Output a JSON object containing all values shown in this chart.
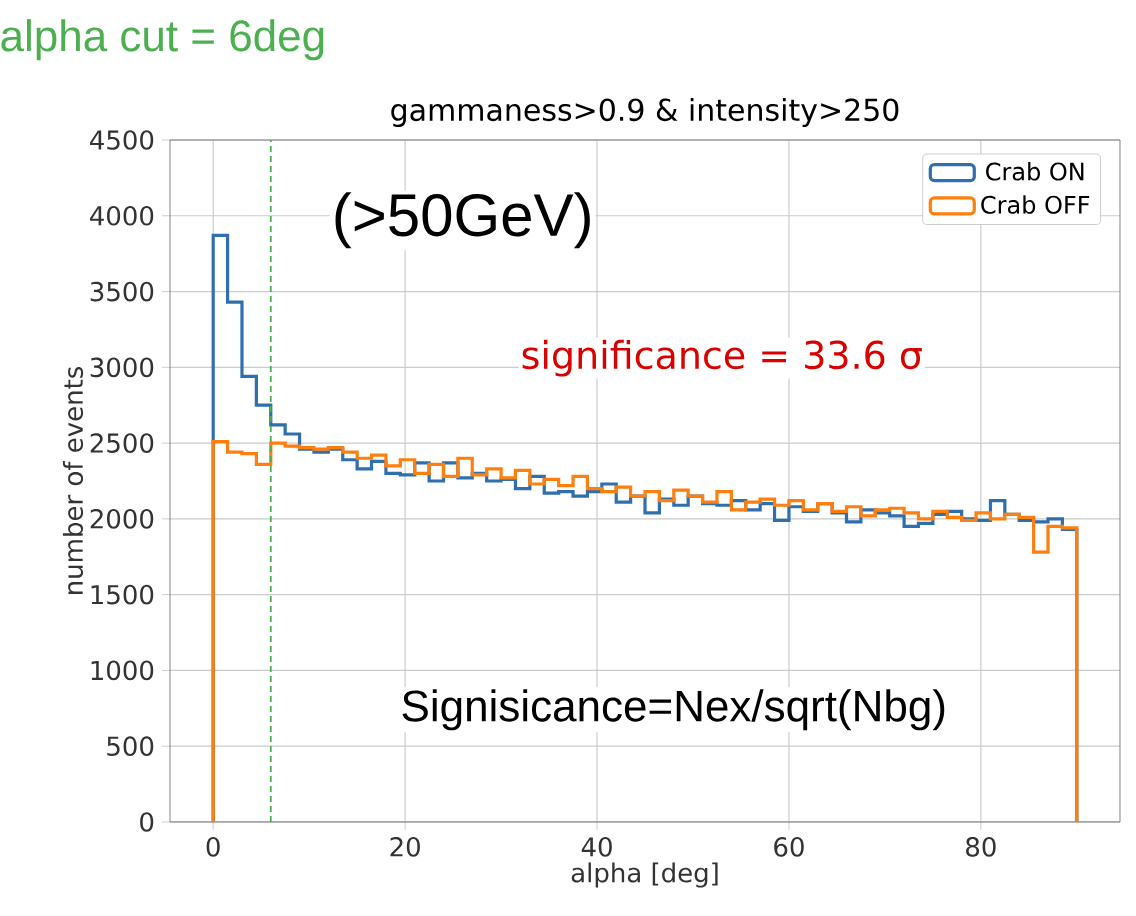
{
  "chart_data": {
    "type": "histogram",
    "title": "gammaness>0.9 & intensity>250",
    "xlabel": "alpha [deg]",
    "ylabel": "number of events",
    "bins": [
      0,
      1.5,
      3,
      4.5,
      6,
      7.5,
      9,
      10.5,
      12,
      13.5,
      15,
      16.5,
      18,
      19.5,
      21,
      22.5,
      24,
      25.5,
      27,
      28.5,
      30,
      31.5,
      33,
      34.5,
      36,
      37.5,
      39,
      40.5,
      42,
      43.5,
      45,
      46.5,
      48,
      49.5,
      51,
      52.5,
      54,
      55.5,
      57,
      58.5,
      60,
      61.5,
      63,
      64.5,
      66,
      67.5,
      69,
      70.5,
      72,
      73.5,
      75,
      76.5,
      78,
      79.5,
      81,
      82.5,
      84,
      85.5,
      87,
      88.5,
      90
    ],
    "series": [
      {
        "name": "Crab ON",
        "color": "#2f6fae",
        "values": [
          3870,
          3430,
          2940,
          2750,
          2620,
          2560,
          2460,
          2440,
          2460,
          2390,
          2330,
          2380,
          2300,
          2290,
          2370,
          2250,
          2370,
          2270,
          2300,
          2250,
          2260,
          2200,
          2280,
          2170,
          2180,
          2150,
          2180,
          2230,
          2110,
          2150,
          2040,
          2130,
          2090,
          2150,
          2100,
          2090,
          2120,
          2060,
          2100,
          1990,
          2080,
          2050,
          2100,
          2040,
          1980,
          2060,
          2040,
          2020,
          1950,
          1970,
          2030,
          2050,
          2000,
          1990,
          2120,
          2030,
          1990,
          1980,
          2000,
          1930
        ]
      },
      {
        "name": "Crab OFF",
        "color": "#ff7f0e",
        "values": [
          2510,
          2440,
          2430,
          2360,
          2500,
          2480,
          2470,
          2460,
          2470,
          2440,
          2400,
          2420,
          2350,
          2390,
          2300,
          2360,
          2280,
          2400,
          2290,
          2330,
          2270,
          2320,
          2230,
          2260,
          2220,
          2280,
          2200,
          2180,
          2210,
          2150,
          2180,
          2120,
          2190,
          2150,
          2110,
          2180,
          2060,
          2110,
          2130,
          2090,
          2120,
          2060,
          2100,
          2050,
          2080,
          2020,
          2060,
          2070,
          2040,
          2000,
          2050,
          2010,
          1990,
          2040,
          2000,
          2030,
          2010,
          1780,
          1950,
          1940
        ]
      }
    ],
    "xlim": [
      -4.5,
      94.5
    ],
    "xticks": [
      0,
      20,
      40,
      60,
      80
    ],
    "ylim": [
      0,
      4500
    ],
    "yticks": [
      0,
      500,
      1000,
      1500,
      2000,
      2500,
      3000,
      3500,
      4000,
      4500
    ],
    "grid": true,
    "legend": "top right",
    "ref_lines": [
      {
        "axis": "x",
        "value": 6,
        "label": "alpha cut = 6deg",
        "color": "#4caf50",
        "line_style": "dashed"
      }
    ],
    "annotations": [
      "(>50GeV)",
      "significance = 33.6 σ",
      "Signisicance=Nex/sqrt(Nbg)"
    ]
  }
}
